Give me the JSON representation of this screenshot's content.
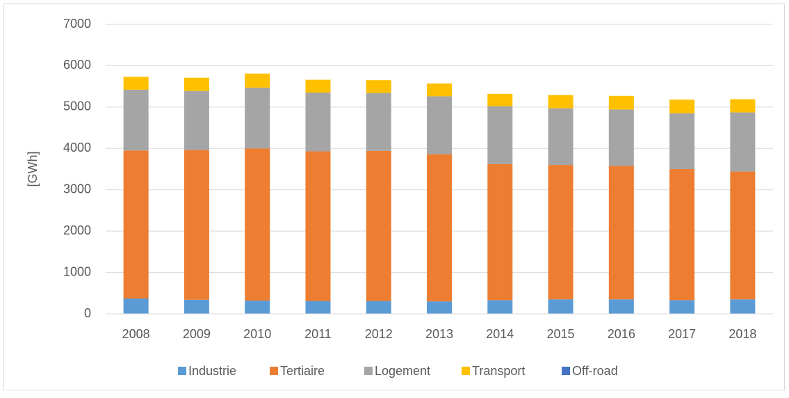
{
  "chart_data": {
    "type": "stacked-bar",
    "y_label": "[GWh]",
    "categories": [
      "2008",
      "2009",
      "2010",
      "2011",
      "2012",
      "2013",
      "2014",
      "2015",
      "2016",
      "2017",
      "2018"
    ],
    "series": [
      {
        "name": "Industrie",
        "color": "#5b9bd5",
        "values": [
          370,
          340,
          320,
          310,
          310,
          300,
          330,
          350,
          350,
          330,
          350
        ]
      },
      {
        "name": "Tertiaire",
        "color": "#ed7d31",
        "values": [
          3580,
          3620,
          3680,
          3620,
          3630,
          3560,
          3290,
          3250,
          3230,
          3170,
          3090
        ]
      },
      {
        "name": "Logement",
        "color": "#a5a5a5",
        "values": [
          1470,
          1430,
          1470,
          1420,
          1400,
          1400,
          1400,
          1370,
          1360,
          1350,
          1430
        ]
      },
      {
        "name": "Transport",
        "color": "#ffc000",
        "values": [
          310,
          320,
          340,
          310,
          310,
          310,
          300,
          320,
          330,
          330,
          320
        ]
      },
      {
        "name": "Off-road",
        "color": "#4472c4",
        "values": [
          0,
          0,
          0,
          0,
          0,
          0,
          0,
          0,
          0,
          0,
          0
        ]
      }
    ],
    "ylim": [
      0,
      7000
    ],
    "yticks": [
      0,
      1000,
      2000,
      3000,
      4000,
      5000,
      6000,
      7000
    ],
    "grid": true,
    "legend": "bottom"
  }
}
